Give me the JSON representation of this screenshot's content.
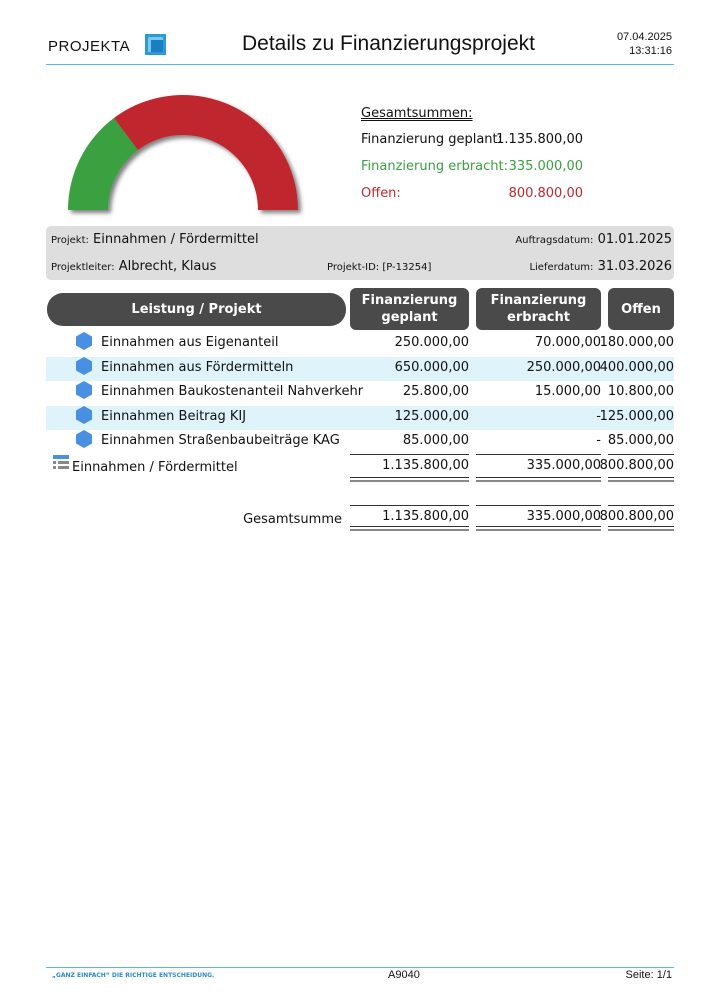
{
  "header": {
    "logo": "PROJEKTA",
    "title": "Details zu Finanzierungsprojekt",
    "date": "07.04.2025",
    "time": "13:31:16"
  },
  "summary": {
    "heading": "Gesamtsummen:",
    "rows": [
      [
        "Finanzierung geplant:",
        "1.135.800,00"
      ],
      [
        "Finanzierung erbracht:",
        "335.000,00"
      ],
      [
        "Offen:",
        "800.800,00"
      ]
    ]
  },
  "info": {
    "project_label": "Projekt:",
    "project": "Einnahmen / Fördermittel",
    "order_date_label": "Auftragsdatum:",
    "order_date": "01.01.2025",
    "lead_label": "Projektleiter:",
    "lead": "Albrecht, Klaus",
    "project_id": "Projekt-ID: [P-13254]",
    "delivery_label": "Lieferdatum:",
    "delivery": "31.03.2026"
  },
  "table": {
    "columns": [
      "Leistung / Projekt",
      "Finanzierung geplant",
      "Finanzierung erbracht",
      "Offen"
    ],
    "rows": [
      [
        "Einnahmen aus Eigenanteil",
        "250.000,00",
        "70.000,00",
        "180.000,00"
      ],
      [
        "Einnahmen aus Fördermitteln",
        "650.000,00",
        "250.000,00",
        "400.000,00"
      ],
      [
        "Einnahmen Baukostenanteil Nahverkehr",
        "25.800,00",
        "15.000,00",
        "10.800,00"
      ],
      [
        "Einnahmen Beitrag KIJ",
        "125.000,00",
        "-",
        "125.000,00"
      ],
      [
        "Einnahmen Straßenbaubeiträge KAG",
        "85.000,00",
        "-",
        "85.000,00"
      ]
    ],
    "group": [
      "Einnahmen / Fördermittel",
      "1.135.800,00",
      "335.000,00",
      "800.800,00"
    ],
    "total": [
      "Gesamtsumme",
      "1.135.800,00",
      "335.000,00",
      "800.800,00"
    ]
  },
  "footer": {
    "slogan": "„GANZ EINFACH“ DIE RICHTIGE ENTSCHEIDUNG.",
    "code": "A9040",
    "page": "Seite: 1/1"
  }
}
